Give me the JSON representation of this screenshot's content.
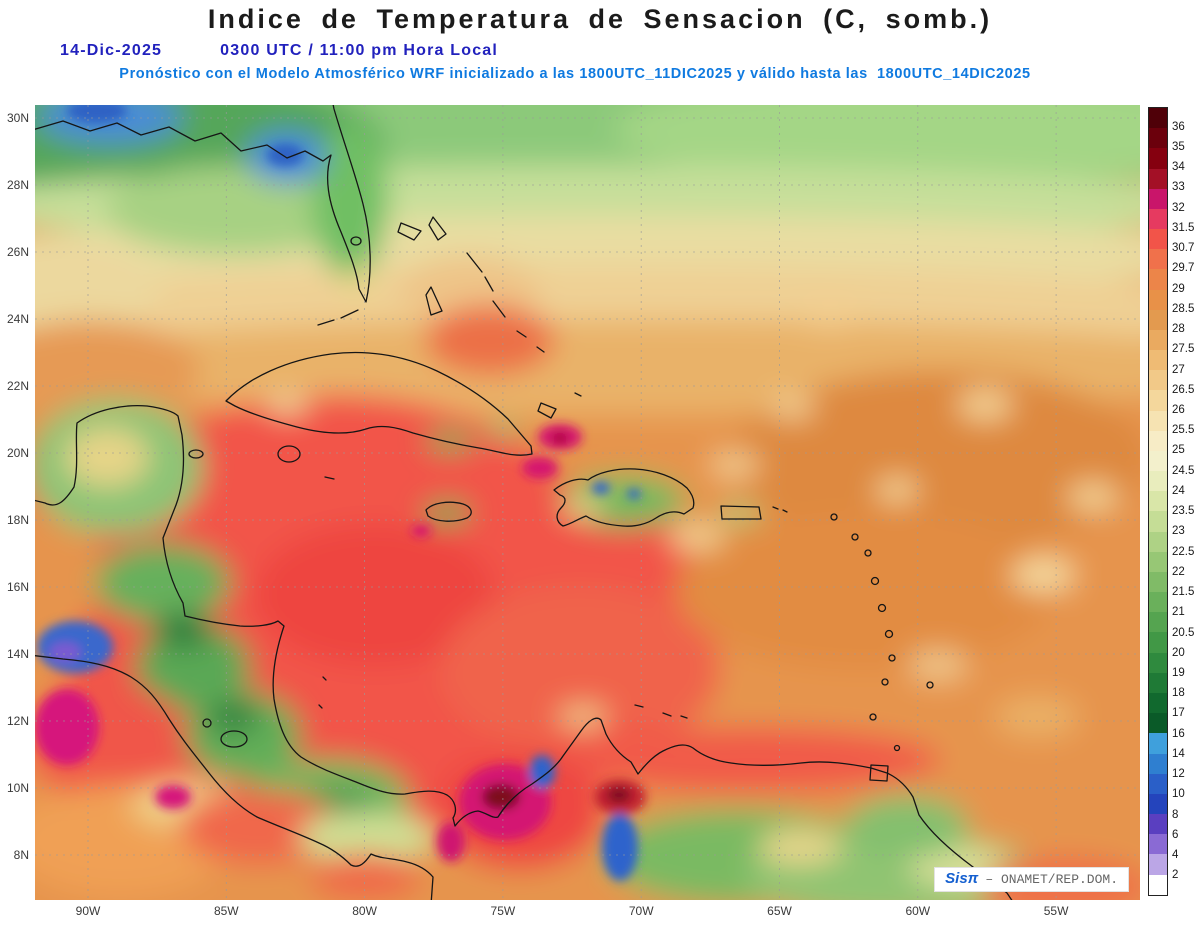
{
  "header": {
    "title": "Indice de Temperatura de Sensacion (C, somb.)",
    "date": "14-Dic-2025",
    "time": "0300 UTC / 11:00 pm Hora Local",
    "model_info": "Pronóstico con el Modelo Atmosférico WRF inicializado a las 1800UTC_11DIC2025 y válido hasta las  1800UTC_14DIC2025"
  },
  "axes": {
    "lat_labels": [
      "30N",
      "28N",
      "26N",
      "24N",
      "22N",
      "20N",
      "18N",
      "16N",
      "14N",
      "12N",
      "10N",
      "8N"
    ],
    "lon_labels": [
      "90W",
      "85W",
      "80W",
      "75W",
      "70W",
      "65W",
      "60W",
      "55W"
    ]
  },
  "colorbar": {
    "boundary_labels": [
      "36",
      "35",
      "34",
      "33",
      "32",
      "31.5",
      "30.7",
      "29.7",
      "29",
      "28.5",
      "28",
      "27.5",
      "27",
      "26.5",
      "26",
      "25.5",
      "25",
      "24.5",
      "24",
      "23.5",
      "23",
      "22.5",
      "22",
      "21.5",
      "21",
      "20.5",
      "20",
      "19",
      "18",
      "17",
      "16",
      "14",
      "12",
      "10",
      "8",
      "6",
      "4",
      "2"
    ],
    "cell_colors_top_to_bottom": [
      "#4f0008",
      "#6b000c",
      "#85000f",
      "#a31026",
      "#c9156a",
      "#e63a60",
      "#f25449",
      "#f0714b",
      "#ec8549",
      "#e89148",
      "#e39a4f",
      "#eaaa60",
      "#efbb74",
      "#f2c988",
      "#f4d79c",
      "#f6e3b2",
      "#f7ecc6",
      "#f3f0cc",
      "#e9edbd",
      "#d9e6a8",
      "#c5dd96",
      "#aed285",
      "#97c775",
      "#80bb67",
      "#6ab05b",
      "#55a450",
      "#419846",
      "#2f8a3e",
      "#1f7a36",
      "#11692e",
      "#0a5a28",
      "#3fa0dc",
      "#2f7fd0",
      "#2a5fc8",
      "#2444bc",
      "#5a3fc0",
      "#8a6ad4",
      "#bba6e6",
      "#ffffff"
    ]
  },
  "watermark": {
    "logo": "Sisπ",
    "text": "– ONAMET/REP.DOM."
  },
  "theme": {
    "subtitle_blue": "#2121bd",
    "model_line_blue": "#0f7ae0",
    "label_color": "#3a3a3a"
  }
}
